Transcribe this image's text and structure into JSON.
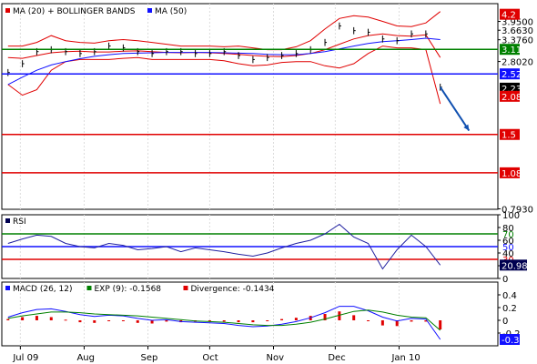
{
  "chart_data": [
    {
      "type": "line",
      "panel": "price",
      "legend": [
        {
          "label": "MA (20) + BOLLINGER BANDS",
          "color": "#e00000"
        },
        {
          "label": "MA (50)",
          "color": "#1010ff"
        }
      ],
      "y_scale": "log",
      "ylim": [
        0.79,
        4.6
      ],
      "y_ticks": [
        "3.9500",
        "3.6630",
        "3.3760",
        "2.8020",
        "0.7930"
      ],
      "x_categories": [
        "Jul 09",
        "Aug",
        "Sep",
        "Oct",
        "Nov",
        "Dec",
        "Jan 10"
      ],
      "x_tick_dates": [
        "2009-07-01",
        "2009-08-01",
        "2009-09-01",
        "2009-10-01",
        "2009-11-01",
        "2009-12-01",
        "2010-01-01"
      ],
      "price_series": {
        "name": "Price",
        "color": "#000000",
        "dates": [
          "2009-06-25",
          "2009-07-02",
          "2009-07-09",
          "2009-07-16",
          "2009-07-23",
          "2009-07-30",
          "2009-08-06",
          "2009-08-13",
          "2009-08-20",
          "2009-08-27",
          "2009-09-03",
          "2009-09-10",
          "2009-09-17",
          "2009-09-24",
          "2009-10-01",
          "2009-10-08",
          "2009-10-15",
          "2009-10-22",
          "2009-10-29",
          "2009-11-05",
          "2009-11-12",
          "2009-11-19",
          "2009-11-26",
          "2009-12-03",
          "2009-12-10",
          "2009-12-17",
          "2009-12-24",
          "2009-12-31",
          "2010-01-07",
          "2010-01-14",
          "2010-01-21"
        ],
        "values": [
          2.55,
          2.75,
          3.05,
          3.1,
          3.05,
          3.0,
          3.05,
          3.2,
          3.15,
          3.05,
          3.0,
          3.05,
          3.05,
          3.0,
          3.0,
          3.05,
          2.95,
          2.85,
          2.9,
          2.95,
          3.0,
          3.1,
          3.3,
          3.8,
          3.65,
          3.6,
          3.4,
          3.35,
          3.55,
          3.55,
          2.25
        ]
      },
      "ma20_series": {
        "name": "MA (20)",
        "color": "#e00000",
        "values": [
          2.9,
          2.88,
          2.95,
          3.02,
          3.05,
          3.06,
          3.04,
          3.04,
          3.06,
          3.07,
          3.05,
          3.03,
          3.02,
          3.03,
          3.02,
          3.0,
          2.98,
          2.95,
          2.93,
          2.92,
          2.95,
          3.0,
          3.1,
          3.25,
          3.4,
          3.5,
          3.55,
          3.5,
          3.48,
          3.52,
          2.9
        ]
      },
      "bollinger_upper": {
        "name": "Bollinger Upper",
        "color": "#e00000",
        "values": [
          3.2,
          3.2,
          3.3,
          3.5,
          3.35,
          3.3,
          3.28,
          3.35,
          3.38,
          3.35,
          3.3,
          3.25,
          3.2,
          3.2,
          3.2,
          3.18,
          3.2,
          3.15,
          3.1,
          3.1,
          3.18,
          3.35,
          3.7,
          4.05,
          4.15,
          4.1,
          3.95,
          3.8,
          3.78,
          3.9,
          4.3
        ]
      },
      "bollinger_lower": {
        "name": "Bollinger Lower",
        "color": "#e00000",
        "values": [
          2.3,
          2.1,
          2.2,
          2.6,
          2.8,
          2.85,
          2.85,
          2.85,
          2.88,
          2.9,
          2.85,
          2.85,
          2.85,
          2.85,
          2.85,
          2.82,
          2.75,
          2.7,
          2.72,
          2.78,
          2.8,
          2.8,
          2.7,
          2.65,
          2.75,
          3.0,
          3.2,
          3.15,
          3.15,
          3.1,
          1.95
        ]
      },
      "ma50_series": {
        "name": "MA (50)",
        "color": "#1010ff",
        "values": [
          2.3,
          2.45,
          2.6,
          2.72,
          2.8,
          2.87,
          2.93,
          2.97,
          3.0,
          3.01,
          3.02,
          3.03,
          3.03,
          3.03,
          3.03,
          3.02,
          3.01,
          3.0,
          2.98,
          2.97,
          2.97,
          3.0,
          3.05,
          3.12,
          3.2,
          3.27,
          3.32,
          3.35,
          3.38,
          3.42,
          3.38
        ]
      },
      "horizontal_lines": [
        {
          "value": 3.11,
          "color": "#008000",
          "label": "3.11"
        },
        {
          "value": 2.52,
          "color": "#1010ff",
          "label": "2.52"
        },
        {
          "value": 1.5,
          "color": "#e00000",
          "label": "1.5"
        },
        {
          "value": 1.08,
          "color": "#e00000",
          "label": "1.08"
        }
      ],
      "value_tags": [
        {
          "value": 4.2,
          "label": "4.2",
          "bg": "#e00000",
          "fg": "#ffffff"
        },
        {
          "value": 2.23,
          "label": "2.23",
          "bg": "#000000",
          "fg": "#ffffff"
        },
        {
          "value": 2.08,
          "label": "2.08",
          "bg": "#e00000",
          "fg": "#ffffff"
        }
      ],
      "projection_arrow": {
        "color": "#1050b0",
        "from": {
          "date": "2010-01-21",
          "value": 2.25
        },
        "to": {
          "date": "2010-02-04",
          "value": 1.55
        }
      }
    },
    {
      "type": "line",
      "panel": "rsi",
      "legend": [
        {
          "label": "RSI",
          "color": "#000050"
        }
      ],
      "ylim": [
        0,
        100
      ],
      "y_ticks": [
        "100",
        "80",
        "60",
        "40",
        "20",
        "0"
      ],
      "levels": [
        {
          "value": 70,
          "color": "#008000",
          "label": "70"
        },
        {
          "value": 50,
          "color": "#1010ff",
          "label": "50"
        },
        {
          "value": 30,
          "color": "#e00000",
          "label": "30"
        }
      ],
      "series": [
        {
          "name": "RSI",
          "color": "#2020a0",
          "dates": [
            "2009-06-25",
            "2009-07-02",
            "2009-07-09",
            "2009-07-16",
            "2009-07-23",
            "2009-07-30",
            "2009-08-06",
            "2009-08-13",
            "2009-08-20",
            "2009-08-27",
            "2009-09-03",
            "2009-09-10",
            "2009-09-17",
            "2009-09-24",
            "2009-10-01",
            "2009-10-08",
            "2009-10-15",
            "2009-10-22",
            "2009-10-29",
            "2009-11-05",
            "2009-11-12",
            "2009-11-19",
            "2009-11-26",
            "2009-12-03",
            "2009-12-10",
            "2009-12-17",
            "2009-12-24",
            "2009-12-31",
            "2010-01-07",
            "2010-01-14",
            "2010-01-21"
          ],
          "values": [
            55,
            62,
            68,
            66,
            55,
            50,
            48,
            55,
            52,
            45,
            47,
            50,
            42,
            48,
            45,
            42,
            38,
            35,
            40,
            48,
            55,
            60,
            70,
            85,
            65,
            55,
            15,
            45,
            68,
            50,
            20.98
          ]
        }
      ],
      "value_tag": {
        "value": 20.98,
        "label": "20.98",
        "bg": "#000050",
        "fg": "#ffffff"
      }
    },
    {
      "type": "bar",
      "panel": "macd",
      "legend": [
        {
          "label": "MACD (26, 12)",
          "color": "#1010ff"
        },
        {
          "label": "EXP (9): -0.1568",
          "color": "#008000"
        },
        {
          "label": "Divergence: -0.1434",
          "color": "#e00000"
        }
      ],
      "ylim": [
        -0.4,
        0.6
      ],
      "y_ticks": [
        "0.4",
        "0.2",
        "0",
        "-0.2"
      ],
      "dates": [
        "2009-06-25",
        "2009-07-02",
        "2009-07-09",
        "2009-07-16",
        "2009-07-23",
        "2009-07-30",
        "2009-08-06",
        "2009-08-13",
        "2009-08-20",
        "2009-08-27",
        "2009-09-03",
        "2009-09-10",
        "2009-09-17",
        "2009-09-24",
        "2009-10-01",
        "2009-10-08",
        "2009-10-15",
        "2009-10-22",
        "2009-10-29",
        "2009-11-05",
        "2009-11-12",
        "2009-11-19",
        "2009-11-26",
        "2009-12-03",
        "2009-12-10",
        "2009-12-17",
        "2009-12-24",
        "2009-12-31",
        "2010-01-07",
        "2010-01-14",
        "2010-01-21"
      ],
      "series": [
        {
          "name": "MACD (26, 12)",
          "color": "#1010ff",
          "values": [
            0.05,
            0.12,
            0.17,
            0.18,
            0.14,
            0.09,
            0.06,
            0.08,
            0.07,
            0.03,
            0.0,
            0.01,
            -0.02,
            -0.03,
            -0.04,
            -0.05,
            -0.08,
            -0.1,
            -0.09,
            -0.06,
            -0.02,
            0.04,
            0.12,
            0.22,
            0.22,
            0.15,
            0.05,
            -0.01,
            0.03,
            0.02,
            -0.3
          ]
        },
        {
          "name": "EXP (9)",
          "color": "#008000",
          "values": [
            0.03,
            0.07,
            0.1,
            0.13,
            0.13,
            0.12,
            0.1,
            0.09,
            0.08,
            0.07,
            0.05,
            0.03,
            0.01,
            -0.01,
            -0.02,
            -0.03,
            -0.05,
            -0.07,
            -0.08,
            -0.08,
            -0.06,
            -0.03,
            0.02,
            0.08,
            0.14,
            0.16,
            0.13,
            0.08,
            0.05,
            0.04,
            -0.1568
          ]
        },
        {
          "name": "Divergence",
          "color": "#e00000",
          "kind": "bar",
          "values": [
            0.02,
            0.05,
            0.07,
            0.05,
            0.01,
            -0.03,
            -0.04,
            -0.01,
            -0.01,
            -0.04,
            -0.05,
            -0.02,
            -0.03,
            -0.02,
            -0.02,
            -0.02,
            -0.03,
            -0.03,
            -0.01,
            0.02,
            0.04,
            0.07,
            0.1,
            0.14,
            0.08,
            -0.01,
            -0.08,
            -0.09,
            -0.02,
            -0.02,
            -0.1434
          ]
        }
      ],
      "value_tag": {
        "value": -0.3,
        "label": "-0.3",
        "bg": "#1010ff",
        "fg": "#ffffff"
      }
    }
  ]
}
